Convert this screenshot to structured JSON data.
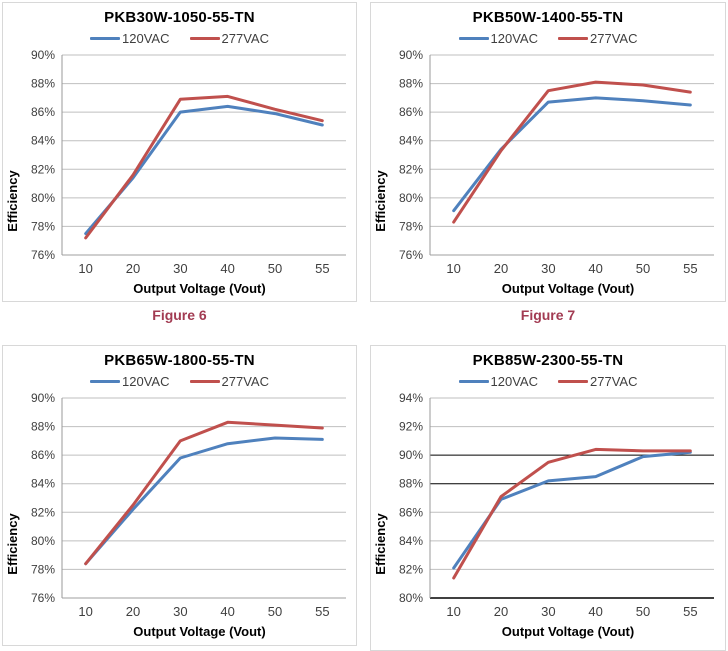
{
  "colors": {
    "grid": "#bfbfbf",
    "dark_grid": "#000000",
    "axis": "#9a9a9a",
    "caption": "#a23b52",
    "tick_text": "#3f3f3f",
    "series_blue": "#4f81bd",
    "series_red": "#c0504d"
  },
  "chart_data": [
    {
      "type": "line",
      "title": "PKB30W-1050-55-TN",
      "caption": "Figure 6",
      "categories": [
        10,
        20,
        30,
        40,
        50,
        55
      ],
      "series": [
        {
          "name": "120VAC",
          "color": "#4f81bd",
          "values": [
            77.5,
            81.4,
            86.0,
            86.4,
            85.9,
            85.1
          ]
        },
        {
          "name": "277VAC",
          "color": "#c0504d",
          "values": [
            77.2,
            81.6,
            86.9,
            87.1,
            86.2,
            85.4
          ]
        }
      ],
      "xlabel": "Output Voltage (Vout)",
      "ylabel": "Efficiency",
      "ylim": [
        76,
        90
      ],
      "ytick_step": 2,
      "ytick_suffix": "%",
      "grid": true,
      "legend_position": "top",
      "dark_gridlines": []
    },
    {
      "type": "line",
      "title": "PKB50W-1400-55-TN",
      "caption": "Figure 7",
      "categories": [
        10,
        20,
        30,
        40,
        50,
        55
      ],
      "series": [
        {
          "name": "120VAC",
          "color": "#4f81bd",
          "values": [
            79.1,
            83.4,
            86.7,
            87.0,
            86.8,
            86.5
          ]
        },
        {
          "name": "277VAC",
          "color": "#c0504d",
          "values": [
            78.3,
            83.3,
            87.5,
            88.1,
            87.9,
            87.4
          ]
        }
      ],
      "xlabel": "Output Voltage (Vout)",
      "ylabel": "Efficiency",
      "ylim": [
        76,
        90
      ],
      "ytick_step": 2,
      "ytick_suffix": "%",
      "grid": true,
      "legend_position": "top",
      "dark_gridlines": []
    },
    {
      "type": "line",
      "title": "PKB65W-1800-55-TN",
      "categories": [
        10,
        20,
        30,
        40,
        50,
        55
      ],
      "series": [
        {
          "name": "120VAC",
          "color": "#4f81bd",
          "values": [
            78.4,
            82.2,
            85.8,
            86.8,
            87.2,
            87.1
          ]
        },
        {
          "name": "277VAC",
          "color": "#c0504d",
          "values": [
            78.4,
            82.5,
            87.0,
            88.3,
            88.1,
            87.9
          ]
        }
      ],
      "xlabel": "Output Voltage (Vout)",
      "ylabel": "Efficiency",
      "ylim": [
        76,
        90
      ],
      "ytick_step": 2,
      "ytick_suffix": "%",
      "grid": true,
      "legend_position": "top",
      "dark_gridlines": []
    },
    {
      "type": "line",
      "title": "PKB85W-2300-55-TN",
      "categories": [
        10,
        20,
        30,
        40,
        50,
        55
      ],
      "series": [
        {
          "name": "120VAC",
          "color": "#4f81bd",
          "values": [
            82.1,
            86.9,
            88.2,
            88.5,
            89.9,
            90.2
          ]
        },
        {
          "name": "277VAC",
          "color": "#c0504d",
          "values": [
            81.4,
            87.1,
            89.5,
            90.4,
            90.3,
            90.3
          ]
        }
      ],
      "xlabel": "Output Voltage (Vout)",
      "ylabel": "Efficiency",
      "ylim": [
        80,
        94
      ],
      "ytick_step": 2,
      "ytick_suffix": "%",
      "grid": true,
      "legend_position": "top",
      "dark_gridlines": [
        80,
        88,
        90
      ]
    }
  ]
}
